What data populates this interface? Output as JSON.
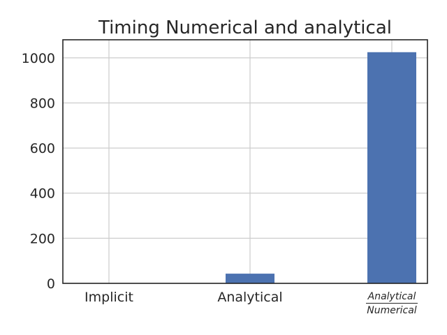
{
  "chart_data": {
    "type": "bar",
    "title": "Timing Numerical and analytical",
    "xlabel": "",
    "ylabel": "",
    "categories": [
      "Implicit",
      "Analytical",
      "Analytical / Numerical"
    ],
    "category_labels": [
      {
        "text": "Implicit"
      },
      {
        "text": "Analytical"
      },
      {
        "numerator": "Analytical",
        "denominator": "Numerical"
      }
    ],
    "values": [
      0,
      43,
      1025
    ],
    "ylim": [
      0,
      1080
    ],
    "yticks": [
      0,
      200,
      400,
      600,
      800,
      1000
    ],
    "grid": true,
    "legend": "none",
    "bar_color": "#4c72b0"
  }
}
